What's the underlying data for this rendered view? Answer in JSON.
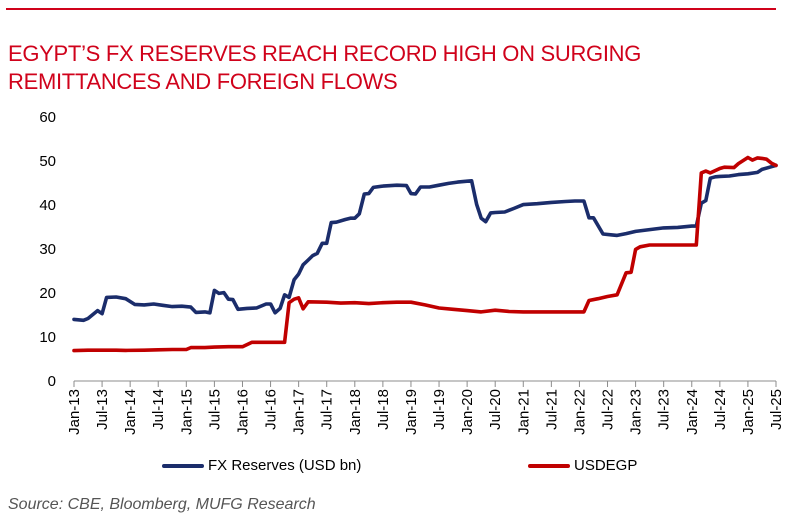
{
  "title": {
    "line1": "EGYPT’S FX RESERVES REACH RECORD HIGH ON SURGING",
    "line2": "REMITTANCES AND FOREIGN FLOWS"
  },
  "source": "Source: CBE, Bloomberg, MUFG Research",
  "colors": {
    "accent": "#d0021b",
    "reserves": "#1b2d6b",
    "usdegp": "#c00000"
  },
  "chart_data": {
    "type": "line",
    "title": "EGYPT’S FX RESERVES REACH RECORD HIGH ON SURGING REMITTANCES AND FOREIGN FLOWS",
    "xlabel": "",
    "ylabel": "",
    "ylim": [
      0,
      60
    ],
    "yticks": [
      0,
      10,
      20,
      30,
      40,
      50,
      60
    ],
    "xlim": [
      2013.0,
      2025.5
    ],
    "xticks": [
      {
        "label": "Jan-13",
        "t": 2013.0
      },
      {
        "label": "Jul-13",
        "t": 2013.5
      },
      {
        "label": "Jan-14",
        "t": 2014.0
      },
      {
        "label": "Jul-14",
        "t": 2014.5
      },
      {
        "label": "Jan-15",
        "t": 2015.0
      },
      {
        "label": "Jul-15",
        "t": 2015.5
      },
      {
        "label": "Jan-16",
        "t": 2016.0
      },
      {
        "label": "Jul-16",
        "t": 2016.5
      },
      {
        "label": "Jan-17",
        "t": 2017.0
      },
      {
        "label": "Jul-17",
        "t": 2017.5
      },
      {
        "label": "Jan-18",
        "t": 2018.0
      },
      {
        "label": "Jul-18",
        "t": 2018.5
      },
      {
        "label": "Jan-19",
        "t": 2019.0
      },
      {
        "label": "Jul-19",
        "t": 2019.5
      },
      {
        "label": "Jan-20",
        "t": 2020.0
      },
      {
        "label": "Jul-20",
        "t": 2020.5
      },
      {
        "label": "Jan-21",
        "t": 2021.0
      },
      {
        "label": "Jul-21",
        "t": 2021.5
      },
      {
        "label": "Jan-22",
        "t": 2022.0
      },
      {
        "label": "Jul-22",
        "t": 2022.5
      },
      {
        "label": "Jan-23",
        "t": 2023.0
      },
      {
        "label": "Jul-23",
        "t": 2023.5
      },
      {
        "label": "Jan-24",
        "t": 2024.0
      },
      {
        "label": "Jul-24",
        "t": 2024.5
      },
      {
        "label": "Jan-25",
        "t": 2025.0
      },
      {
        "label": "Jul-25",
        "t": 2025.5
      }
    ],
    "grid": false,
    "legend_position": "bottom",
    "series": [
      {
        "name": "FX Reserves (USD bn)",
        "color": "#1b2d6b",
        "points": [
          [
            2013.0,
            14.0
          ],
          [
            2013.17,
            13.8
          ],
          [
            2013.25,
            14.2
          ],
          [
            2013.42,
            16.0
          ],
          [
            2013.5,
            15.3
          ],
          [
            2013.58,
            19.0
          ],
          [
            2013.75,
            19.1
          ],
          [
            2013.92,
            18.7
          ],
          [
            2014.08,
            17.4
          ],
          [
            2014.25,
            17.3
          ],
          [
            2014.42,
            17.5
          ],
          [
            2014.58,
            17.2
          ],
          [
            2014.75,
            16.9
          ],
          [
            2014.92,
            17.0
          ],
          [
            2015.08,
            16.8
          ],
          [
            2015.17,
            15.6
          ],
          [
            2015.33,
            15.7
          ],
          [
            2015.42,
            15.5
          ],
          [
            2015.5,
            20.6
          ],
          [
            2015.58,
            19.9
          ],
          [
            2015.67,
            20.1
          ],
          [
            2015.75,
            18.6
          ],
          [
            2015.83,
            18.5
          ],
          [
            2015.92,
            16.3
          ],
          [
            2016.08,
            16.5
          ],
          [
            2016.25,
            16.6
          ],
          [
            2016.42,
            17.5
          ],
          [
            2016.5,
            17.5
          ],
          [
            2016.58,
            15.5
          ],
          [
            2016.67,
            16.5
          ],
          [
            2016.75,
            19.6
          ],
          [
            2016.83,
            19.0
          ],
          [
            2016.92,
            23.0
          ],
          [
            2017.0,
            24.3
          ],
          [
            2017.08,
            26.4
          ],
          [
            2017.17,
            27.5
          ],
          [
            2017.25,
            28.5
          ],
          [
            2017.33,
            29.0
          ],
          [
            2017.42,
            31.3
          ],
          [
            2017.5,
            31.3
          ],
          [
            2017.58,
            36.0
          ],
          [
            2017.67,
            36.1
          ],
          [
            2017.83,
            36.7
          ],
          [
            2017.92,
            37.0
          ],
          [
            2018.0,
            37.0
          ],
          [
            2018.08,
            38.0
          ],
          [
            2018.17,
            42.5
          ],
          [
            2018.25,
            42.6
          ],
          [
            2018.33,
            44.0
          ],
          [
            2018.5,
            44.3
          ],
          [
            2018.75,
            44.5
          ],
          [
            2018.92,
            44.4
          ],
          [
            2019.0,
            42.6
          ],
          [
            2019.08,
            42.5
          ],
          [
            2019.17,
            44.1
          ],
          [
            2019.33,
            44.1
          ],
          [
            2019.5,
            44.5
          ],
          [
            2019.67,
            44.9
          ],
          [
            2019.83,
            45.2
          ],
          [
            2020.0,
            45.4
          ],
          [
            2020.08,
            45.5
          ],
          [
            2020.17,
            40.1
          ],
          [
            2020.25,
            37.0
          ],
          [
            2020.33,
            36.2
          ],
          [
            2020.42,
            38.2
          ],
          [
            2020.5,
            38.3
          ],
          [
            2020.67,
            38.4
          ],
          [
            2020.83,
            39.2
          ],
          [
            2021.0,
            40.1
          ],
          [
            2021.25,
            40.3
          ],
          [
            2021.5,
            40.6
          ],
          [
            2021.75,
            40.8
          ],
          [
            2021.92,
            40.9
          ],
          [
            2022.08,
            40.9
          ],
          [
            2022.17,
            37.1
          ],
          [
            2022.25,
            37.1
          ],
          [
            2022.42,
            33.4
          ],
          [
            2022.58,
            33.2
          ],
          [
            2022.67,
            33.1
          ],
          [
            2022.83,
            33.5
          ],
          [
            2023.0,
            34.0
          ],
          [
            2023.25,
            34.4
          ],
          [
            2023.5,
            34.8
          ],
          [
            2023.75,
            34.9
          ],
          [
            2024.0,
            35.2
          ],
          [
            2024.08,
            35.2
          ],
          [
            2024.17,
            40.4
          ],
          [
            2024.25,
            41.0
          ],
          [
            2024.33,
            46.1
          ],
          [
            2024.42,
            46.4
          ],
          [
            2024.5,
            46.5
          ],
          [
            2024.67,
            46.6
          ],
          [
            2024.83,
            46.9
          ],
          [
            2025.0,
            47.1
          ],
          [
            2025.17,
            47.4
          ],
          [
            2025.25,
            48.1
          ],
          [
            2025.42,
            48.7
          ],
          [
            2025.5,
            49.0
          ]
        ]
      },
      {
        "name": "USDEGP",
        "color": "#c00000",
        "points": [
          [
            2013.0,
            6.9
          ],
          [
            2013.25,
            7.0
          ],
          [
            2013.42,
            7.0
          ],
          [
            2013.5,
            7.0
          ],
          [
            2013.75,
            7.0
          ],
          [
            2013.92,
            6.95
          ],
          [
            2014.25,
            7.0
          ],
          [
            2014.5,
            7.1
          ],
          [
            2014.75,
            7.15
          ],
          [
            2015.0,
            7.15
          ],
          [
            2015.08,
            7.6
          ],
          [
            2015.33,
            7.6
          ],
          [
            2015.5,
            7.7
          ],
          [
            2015.75,
            7.8
          ],
          [
            2015.83,
            7.8
          ],
          [
            2016.0,
            7.8
          ],
          [
            2016.17,
            8.8
          ],
          [
            2016.5,
            8.8
          ],
          [
            2016.75,
            8.8
          ],
          [
            2016.83,
            17.8
          ],
          [
            2016.92,
            18.6
          ],
          [
            2017.0,
            18.9
          ],
          [
            2017.08,
            16.4
          ],
          [
            2017.17,
            18.0
          ],
          [
            2017.5,
            17.9
          ],
          [
            2017.75,
            17.7
          ],
          [
            2018.0,
            17.8
          ],
          [
            2018.25,
            17.6
          ],
          [
            2018.5,
            17.8
          ],
          [
            2018.75,
            17.9
          ],
          [
            2019.0,
            17.9
          ],
          [
            2019.25,
            17.3
          ],
          [
            2019.5,
            16.6
          ],
          [
            2019.75,
            16.3
          ],
          [
            2020.0,
            16.0
          ],
          [
            2020.25,
            15.7
          ],
          [
            2020.5,
            16.1
          ],
          [
            2020.75,
            15.8
          ],
          [
            2021.0,
            15.7
          ],
          [
            2021.5,
            15.7
          ],
          [
            2022.0,
            15.7
          ],
          [
            2022.08,
            15.7
          ],
          [
            2022.17,
            18.3
          ],
          [
            2022.33,
            18.7
          ],
          [
            2022.5,
            19.2
          ],
          [
            2022.67,
            19.6
          ],
          [
            2022.83,
            24.6
          ],
          [
            2022.92,
            24.7
          ],
          [
            2023.0,
            29.9
          ],
          [
            2023.08,
            30.5
          ],
          [
            2023.25,
            30.9
          ],
          [
            2023.5,
            30.9
          ],
          [
            2023.75,
            30.9
          ],
          [
            2024.0,
            30.9
          ],
          [
            2024.08,
            30.9
          ],
          [
            2024.17,
            47.3
          ],
          [
            2024.25,
            47.7
          ],
          [
            2024.33,
            47.3
          ],
          [
            2024.5,
            48.3
          ],
          [
            2024.58,
            48.6
          ],
          [
            2024.75,
            48.5
          ],
          [
            2024.83,
            49.4
          ],
          [
            2025.0,
            50.8
          ],
          [
            2025.08,
            50.2
          ],
          [
            2025.17,
            50.7
          ],
          [
            2025.25,
            50.6
          ],
          [
            2025.33,
            50.4
          ],
          [
            2025.42,
            49.5
          ],
          [
            2025.5,
            49.0
          ]
        ]
      }
    ]
  }
}
